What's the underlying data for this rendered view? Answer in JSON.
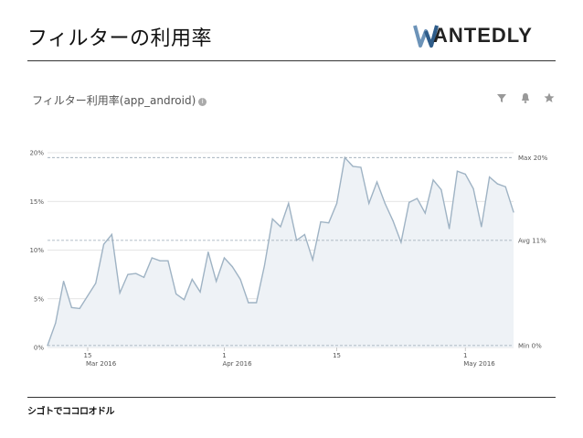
{
  "slide": {
    "title": "フィルターの利用率",
    "footer": "シゴトでココロオドル",
    "logo_text": "ANTEDLY"
  },
  "panel": {
    "title": "フィルター利用率(app_android)",
    "info_icon": "info-icon",
    "tools": [
      "filter-icon",
      "bell-icon",
      "star-icon"
    ]
  },
  "chart_data": {
    "type": "area",
    "title": "フィルター利用率(app_android)",
    "y_unit": "%",
    "ylim": [
      0,
      20
    ],
    "y_ticks": [
      "0%",
      "5%",
      "10%",
      "15%",
      "20%"
    ],
    "x_ticks": [
      {
        "day": "15",
        "month": "Mar 2016"
      },
      {
        "day": "1",
        "month": "Apr 2016"
      },
      {
        "day": "15",
        "month": ""
      },
      {
        "day": "1",
        "month": "May 2016"
      }
    ],
    "x_start": "2016-03-10",
    "series": [
      {
        "values": [
          0.2,
          2.5,
          6.8,
          4.1,
          4.0,
          5.3,
          6.6,
          10.6,
          11.6,
          5.6,
          7.5,
          7.6,
          7.2,
          9.2,
          8.9,
          8.9,
          5.5,
          4.9,
          7.0,
          5.7,
          9.8,
          6.8,
          9.2,
          8.3,
          7.0,
          4.6,
          4.6,
          8.4,
          13.2,
          12.4,
          14.8,
          11.0,
          11.6,
          9.0,
          12.9,
          12.8,
          14.8,
          19.5,
          18.6,
          18.5,
          14.8,
          17.0,
          14.8,
          13.0,
          10.8,
          14.9,
          15.3,
          13.8,
          17.2,
          16.2,
          12.2,
          18.1,
          17.8,
          16.3,
          12.4,
          17.5,
          16.8,
          16.5,
          13.9
        ],
        "line_color": "#9fb3c4",
        "fill_color": "#eef2f6"
      }
    ],
    "reference_lines": [
      {
        "label": "Max 20%",
        "value": 19.5
      },
      {
        "label": "Avg 11%",
        "value": 11.0
      },
      {
        "label": "Min 0%",
        "value": 0.2
      }
    ],
    "grid": true
  }
}
